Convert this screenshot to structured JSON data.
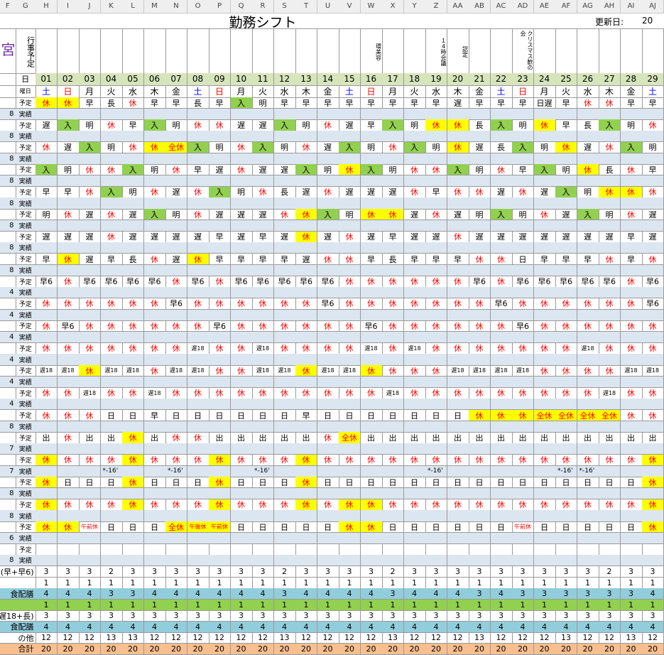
{
  "columns": [
    "F",
    "G",
    "H",
    "I",
    "J",
    "K",
    "L",
    "M",
    "N",
    "O",
    "P",
    "Q",
    "R",
    "S",
    "T",
    "U",
    "V",
    "W",
    "X",
    "Y",
    "Z",
    "AA",
    "AB",
    "AC",
    "AD",
    "AE",
    "AF",
    "AG",
    "AH",
    "AI",
    "AJ"
  ],
  "title": "勤務シフト",
  "updated_label": "更新日:",
  "updated_value": "20",
  "side_label": "宮",
  "event_label": "行事予定",
  "day_label": "日",
  "weekday_label": "曜日",
  "plan_label": "予定",
  "actual_label": "実績",
  "days": [
    "01",
    "02",
    "03",
    "04",
    "05",
    "06",
    "07",
    "08",
    "09",
    "10",
    "11",
    "12",
    "13",
    "14",
    "15",
    "16",
    "17",
    "18",
    "19",
    "20",
    "21",
    "22",
    "23",
    "24",
    "25",
    "26",
    "27",
    "28",
    "29"
  ],
  "weekdays": [
    "土",
    "日",
    "月",
    "火",
    "水",
    "木",
    "金",
    "土",
    "日",
    "月",
    "火",
    "水",
    "木",
    "金",
    "土",
    "日",
    "月",
    "火",
    "水",
    "木",
    "金",
    "土",
    "日",
    "月",
    "火",
    "水",
    "木",
    "金",
    "土"
  ],
  "weekday_colors": {
    "土": "#0000ff",
    "日": "#ff0000"
  },
  "events": [
    null,
    null,
    null,
    null,
    null,
    null,
    null,
    null,
    null,
    null,
    null,
    null,
    null,
    null,
    null,
    "環美容",
    null,
    null,
    "１４時会議",
    "認定",
    null,
    null,
    "クリスマス歓の会",
    null,
    null,
    null,
    null,
    null,
    null
  ],
  "cell_styles": {
    "休": {
      "color": "#ff0000"
    },
    "全休": {
      "color": "#ff0000"
    },
    "午前休": {
      "color": "#ff0000"
    },
    "午後休": {
      "color": "#ff0000"
    },
    "入": {
      "background": "#92d050"
    }
  },
  "highlight_color": "#ffff00",
  "staff": [
    {
      "hours": "8",
      "yellow": [
        0,
        1
      ],
      "plan": [
        "休",
        "休",
        "早",
        "長",
        "休",
        "早",
        "早",
        "長",
        "早",
        "入",
        "明",
        "早",
        "早",
        "早",
        "早",
        "早",
        "早",
        "早",
        "早",
        "遅",
        "早",
        "早",
        "早",
        "日遅",
        "早",
        "休",
        "休",
        "早",
        "早"
      ]
    },
    {
      "hours": "8",
      "yellow": [
        18,
        19,
        23
      ],
      "plan": [
        "遅",
        "入",
        "明",
        "休",
        "早",
        "入",
        "明",
        "休",
        "休",
        "遅",
        "遅",
        "入",
        "明",
        "休",
        "遅",
        "早",
        "入",
        "明",
        "休",
        "休",
        "長",
        "入",
        "明",
        "休",
        "早",
        "長",
        "入",
        "明",
        "休"
      ]
    },
    {
      "hours": "8",
      "yellow": [
        5,
        6,
        19,
        24
      ],
      "plan": [
        "休",
        "遅",
        "入",
        "明",
        "休",
        "休",
        "全休",
        "入",
        "明",
        "休",
        "入",
        "明",
        "休",
        "遅",
        "入",
        "明",
        "休",
        "入",
        "明",
        "休",
        "遅",
        "長",
        "入",
        "明",
        "休",
        "遅",
        "休",
        "入",
        "明"
      ]
    },
    {
      "hours": "8",
      "yellow": [
        14,
        25
      ],
      "plan": [
        "入",
        "明",
        "休",
        "休",
        "入",
        "明",
        "休",
        "早",
        "遅",
        "休",
        "遅",
        "遅",
        "入",
        "明",
        "休",
        "入",
        "明",
        "休",
        "休",
        "入",
        "明",
        "休",
        "早",
        "入",
        "明",
        "休",
        "長",
        "休",
        "早"
      ]
    },
    {
      "hours": "8",
      "yellow": [
        26,
        27
      ],
      "plan": [
        "早",
        "早",
        "休",
        "入",
        "明",
        "休",
        "遅",
        "休",
        "入",
        "明",
        "休",
        "長",
        "遅",
        "休",
        "遅",
        "遅",
        "遅",
        "休",
        "早",
        "休",
        "休",
        "遅",
        "休",
        "遅",
        "入",
        "明",
        "休",
        "休",
        "休"
      ]
    },
    {
      "hours": "8",
      "yellow": [
        12,
        15,
        16
      ],
      "plan": [
        "明",
        "休",
        "遅",
        "休",
        "遅",
        "入",
        "明",
        "休",
        "遅",
        "遅",
        "遅",
        "休",
        "休",
        "入",
        "明",
        "休",
        "休",
        "遅",
        "休",
        "遅",
        "明",
        "入",
        "明",
        "休",
        "遅",
        "入",
        "明",
        "休",
        "遅"
      ]
    },
    {
      "hours": "8",
      "yellow": [
        12
      ],
      "plan": [
        "遅",
        "遅",
        "遅",
        "休",
        "遅",
        "遅",
        "遅",
        "遅",
        "早",
        "遅",
        "早",
        "遅",
        "休",
        "遅",
        "休",
        "遅",
        "早",
        "遅",
        "遅",
        "休",
        "遅",
        "遅",
        "遅",
        "遅",
        "遅",
        "遅",
        "遅",
        "早",
        "遅"
      ]
    },
    {
      "hours": "8",
      "yellow": [
        1,
        7
      ],
      "plan": [
        "早",
        "休",
        "遅",
        "早",
        "長",
        "休",
        "遅",
        "休",
        "早",
        "早",
        "早",
        "早",
        "遅",
        "休",
        "休",
        "早",
        "長",
        "早",
        "早",
        "早",
        "休",
        "休",
        "日",
        "早",
        "早",
        "早",
        "休",
        "早",
        "休"
      ]
    },
    {
      "hours": "4",
      "yellow": [],
      "plan": [
        "早6",
        "休",
        "早6",
        "早6",
        "早6",
        "早6",
        "休",
        "早6",
        "休",
        "早6",
        "早6",
        "早6",
        "早6",
        "早6",
        "休",
        "休",
        "休",
        "休",
        "休",
        "休",
        "早6",
        "休",
        "早6",
        "早6",
        "早6",
        "早6",
        "早6",
        "休",
        "早6"
      ]
    },
    {
      "hours": "4",
      "yellow": [],
      "plan": [
        "休",
        "休",
        "休",
        "休",
        "休",
        "休",
        "早6",
        "休",
        "休",
        "休",
        "休",
        "休",
        "休",
        "早6",
        "休",
        "休",
        "休",
        "休",
        "休",
        "休",
        "休",
        "早6",
        "休",
        "休",
        "休",
        "休",
        "休",
        "休",
        "早6"
      ]
    },
    {
      "hours": "4",
      "yellow": [],
      "plan": [
        "休",
        "早6",
        "休",
        "休",
        "休",
        "休",
        "休",
        "休",
        "早6",
        "休",
        "休",
        "休",
        "休",
        "休",
        "休",
        "早6",
        "休",
        "休",
        "休",
        "休",
        "休",
        "休",
        "早6",
        "休",
        "休",
        "休",
        "休",
        "休",
        "休"
      ]
    },
    {
      "hours": "4",
      "yellow": [],
      "plan": [
        "休",
        "休",
        "休",
        "休",
        "休",
        "休",
        "休",
        "遅18",
        "休",
        "休",
        "遅18",
        "休",
        "休",
        "休",
        "休",
        "遅18",
        "休",
        "遅18",
        "休",
        "休",
        "休",
        "休",
        "休",
        "休",
        "休",
        "遅18",
        "休",
        "休",
        "休"
      ]
    },
    {
      "hours": "4",
      "yellow": [
        2,
        12,
        15
      ],
      "plan": [
        "遅18",
        "遅18",
        "休",
        "遅18",
        "遅18",
        "休",
        "遅18",
        "遅18",
        "休",
        "休",
        "遅18",
        "遅18",
        "休",
        "遅18",
        "遅18",
        "休",
        "休",
        "休",
        "休",
        "遅18",
        "遅18",
        "遅18",
        "遅18",
        "休",
        "休",
        "休",
        "休",
        "遅18",
        "遅18"
      ]
    },
    {
      "hours": "4",
      "yellow": [],
      "plan": [
        "休",
        "休",
        "遅18",
        "休",
        "休",
        "遅18",
        "休",
        "休",
        "休",
        "休",
        "休",
        "休",
        "休",
        "休",
        "休",
        "休",
        "遅18",
        "休",
        "休",
        "休",
        "休",
        "休",
        "休",
        "休",
        "休",
        "休",
        "遅18",
        "休",
        "休"
      ]
    },
    {
      "hours": "8",
      "yellow": [
        20,
        21,
        22,
        23,
        24,
        25,
        26
      ],
      "plan": [
        "休",
        "休",
        "休",
        "日",
        "日",
        "早",
        "日",
        "日",
        "日",
        "日",
        "日",
        "日",
        "早",
        "日",
        "日",
        "日",
        "日",
        "日",
        "日",
        "日",
        "休",
        "休",
        "休",
        "全休",
        "全休",
        "全休",
        "全休",
        "休",
        "休"
      ]
    },
    {
      "hours": "7",
      "yellow": [
        4,
        14
      ],
      "plan": [
        "出",
        "休",
        "出",
        "出",
        "休",
        "出",
        "休",
        "休",
        "出",
        "出",
        "出",
        "出",
        "出",
        "休",
        "全休",
        "出",
        "出",
        "出",
        "出",
        "出",
        "出",
        "出",
        "出",
        "出",
        "出",
        "出",
        "出",
        "出",
        "出"
      ]
    },
    {
      "hours": "7",
      "yellow": [
        0,
        4,
        8,
        12,
        28
      ],
      "plan": [
        "休",
        "休",
        "休",
        "休",
        "休",
        "休",
        "休",
        "休",
        "休",
        "休",
        "休",
        "休",
        "休",
        "休",
        "休",
        "休",
        "休",
        "休",
        "休",
        "休",
        "休",
        "休",
        "休",
        "休",
        "休",
        "休",
        "休",
        "休",
        "休"
      ],
      "actual": [
        null,
        null,
        null,
        "*-16'",
        null,
        null,
        "*-16'",
        null,
        null,
        null,
        "*-16'",
        null,
        null,
        null,
        null,
        null,
        null,
        null,
        "*-16'",
        null,
        null,
        null,
        null,
        null,
        "*-16'",
        "*-16'",
        null,
        null,
        null
      ]
    },
    {
      "hours": "8",
      "yellow": [
        0,
        4,
        8,
        12,
        28
      ],
      "plan": [
        "休",
        "日",
        "日",
        "日",
        "休",
        "日",
        "日",
        "日",
        "休",
        "日",
        "日",
        "日",
        "休",
        "日",
        "日",
        "日",
        "日",
        "日",
        "日",
        "日",
        "日",
        "日",
        "日",
        "日",
        "日",
        "日",
        "日",
        "日",
        "休"
      ]
    },
    {
      "hours": "8",
      "yellow": [
        0,
        4,
        8,
        12,
        14,
        15,
        28
      ],
      "plan": [
        "休",
        "休",
        "休",
        "休",
        "休",
        "休",
        "休",
        "休",
        "休",
        "休",
        "休",
        "休",
        "休",
        "休",
        "休",
        "休",
        "休",
        "休",
        "休",
        "休",
        "休",
        "休",
        "休",
        "休",
        "休",
        "休",
        "休",
        "休",
        "休"
      ]
    },
    {
      "hours": "6",
      "yellow": [
        0,
        1,
        6,
        7,
        8,
        14,
        15,
        28
      ],
      "plan": [
        "休",
        "休",
        "午前休",
        "日",
        "日",
        "日",
        "全休",
        "午後休",
        "午前休",
        "日",
        "日",
        "日",
        "日",
        "日",
        "休",
        "休",
        "日",
        "日",
        "日",
        "日",
        "日",
        "日",
        "午前休",
        "日",
        "日",
        "日",
        "日",
        "日",
        "休"
      ]
    },
    {
      "hours": "8",
      "yellow": [],
      "plan": []
    }
  ],
  "summary": [
    {
      "label": "(早+早6)",
      "values": [
        3,
        3,
        3,
        2,
        3,
        3,
        3,
        3,
        3,
        3,
        3,
        2,
        3,
        3,
        3,
        3,
        2,
        3,
        3,
        3,
        3,
        3,
        3,
        3,
        3,
        3,
        2,
        3,
        3
      ]
    },
    {
      "values": [
        1,
        1,
        1,
        1,
        1,
        1,
        1,
        1,
        1,
        1,
        1,
        1,
        1,
        1,
        1,
        1,
        1,
        1,
        1,
        1,
        1,
        1,
        1,
        1,
        1,
        1,
        1,
        1,
        1
      ]
    },
    {
      "label": "食配膳",
      "background": "#92cddc",
      "values": [
        4,
        4,
        4,
        3,
        3,
        4,
        4,
        4,
        4,
        4,
        4,
        3,
        4,
        4,
        4,
        4,
        3,
        4,
        4,
        4,
        3,
        4,
        3,
        3,
        3,
        3,
        3,
        3,
        4
      ]
    },
    {
      "background": "#92d050",
      "values": [
        1,
        1,
        1,
        1,
        1,
        1,
        1,
        1,
        1,
        1,
        1,
        1,
        1,
        1,
        1,
        1,
        1,
        1,
        1,
        1,
        1,
        1,
        1,
        1,
        1,
        1,
        1,
        1,
        1
      ]
    },
    {
      "label": "(遅+遅18+長)",
      "values": [
        3,
        3,
        3,
        3,
        3,
        3,
        3,
        3,
        3,
        3,
        3,
        3,
        3,
        3,
        3,
        3,
        3,
        3,
        3,
        3,
        3,
        3,
        3,
        3,
        3,
        3,
        3,
        3,
        3
      ]
    },
    {
      "label": "食配膳",
      "background": "#92cddc",
      "values": [
        4,
        4,
        4,
        4,
        4,
        4,
        4,
        4,
        4,
        4,
        4,
        4,
        4,
        4,
        4,
        4,
        4,
        4,
        4,
        4,
        4,
        4,
        4,
        4,
        4,
        4,
        4,
        4,
        4
      ]
    },
    {
      "label": "の他",
      "values": [
        12,
        12,
        12,
        13,
        13,
        12,
        12,
        12,
        12,
        12,
        12,
        13,
        12,
        12,
        12,
        12,
        13,
        12,
        12,
        12,
        13,
        12,
        12,
        12,
        13,
        12,
        12,
        13,
        12
      ]
    },
    {
      "label": "合計",
      "background": "#fabf8f",
      "values": [
        20,
        20,
        20,
        20,
        20,
        20,
        20,
        20,
        20,
        20,
        20,
        20,
        20,
        20,
        20,
        20,
        20,
        20,
        20,
        20,
        20,
        20,
        20,
        20,
        20,
        20,
        20,
        20,
        20
      ]
    }
  ]
}
